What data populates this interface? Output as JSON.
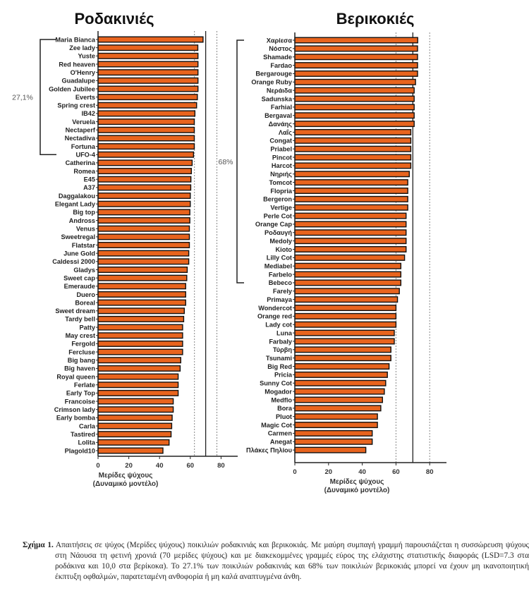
{
  "chart_data": [
    {
      "type": "bar",
      "orientation": "horizontal",
      "title": "Ροδακινιές",
      "xlabel": [
        "Μερίδες ψύχους",
        "(Δυναμικό μοντέλο)"
      ],
      "xlim": [
        0,
        90
      ],
      "xticks": [
        0,
        20,
        40,
        60,
        80
      ],
      "reference_lines": {
        "solid": 70,
        "dotted": [
          62.7,
          77.3
        ]
      },
      "bracket": {
        "label": "27,1%",
        "from": "Maria Bianca",
        "to": "UFO-4"
      },
      "categories": [
        "Maria Bianca",
        "Zee lady",
        "Yuste",
        "Red heaven",
        "O'Henry",
        "Guadalupe",
        "Golden Jubilee",
        "Everts",
        "Spring crest",
        "IB42",
        "Veruela",
        "Nectaperf",
        "Nectadiva",
        "Fortuna",
        "UFO-4",
        "Catherina",
        "Romea",
        "E45",
        "A37",
        "Daggalakou",
        "Elegant Lady",
        "Big top",
        "Andross",
        "Venus",
        "Sweetregal",
        "Flatstar",
        "June Gold",
        "Caldessi 2000",
        "Gladys",
        "Sweet cap",
        "Emeraude",
        "Duero",
        "Boreal",
        "Sweet dream",
        "Tardy bell",
        "Patty",
        "May crest",
        "Fergold",
        "Fercluse",
        "Big bang",
        "Big haven",
        "Royal queen",
        "Ferlate",
        "Early Top",
        "Francoise",
        "Crimson lady",
        "Early bomba",
        "Carla",
        "Tastired",
        "Lolita",
        "Plagold10"
      ],
      "values": [
        68.3,
        64.9,
        65.0,
        65.0,
        65.0,
        65.0,
        65.0,
        64.6,
        64.1,
        63.0,
        62.6,
        62.6,
        62.6,
        62.6,
        62.1,
        61.2,
        60.7,
        60.4,
        60.3,
        60.0,
        60.0,
        59.7,
        59.7,
        59.4,
        59.4,
        59.4,
        59.0,
        59.0,
        58.0,
        57.7,
        57.0,
        57.0,
        57.0,
        56.1,
        55.7,
        55.0,
        55.0,
        55.0,
        55.0,
        53.8,
        53.4,
        52.1,
        52.1,
        52.1,
        48.9,
        48.9,
        48.2,
        47.9,
        47.5,
        46.2,
        42.2
      ]
    },
    {
      "type": "bar",
      "orientation": "horizontal",
      "title": "Βερικοκιές",
      "xlabel": [
        "Μερίδες ψύχους",
        "(Δυναμικό μοντέλο)"
      ],
      "xlim": [
        0,
        90
      ],
      "xticks": [
        0,
        20,
        40,
        60,
        80
      ],
      "reference_lines": {
        "solid": 70,
        "dotted": [
          60,
          80
        ]
      },
      "bracket": {
        "label": "68%",
        "from": "Χαρίεσα",
        "to": "Bebeco"
      },
      "categories": [
        "Χαρίεσα",
        "Νόστος",
        "Shamade",
        "Fardao",
        "Bergarouge",
        "Orange Ruby",
        "Νεράιδα",
        "Sadunska",
        "Farhial",
        "Bergaval",
        "Δανάης",
        "Λαΐς",
        "Congat",
        "Priabel",
        "Pincot",
        "Harcot",
        "Νηριής",
        "Tomcot",
        "Flopria",
        "Bergeron",
        "Vertige",
        "Perle Cot",
        "Orange Cap",
        "Ροδαυγή",
        "Medoly",
        "Kioto",
        "Lilly Cot",
        "Mediabel",
        "Farbelo",
        "Bebeco",
        "Farely",
        "Primaya",
        "Wondercot",
        "Orange red",
        "Lady cot",
        "Luna",
        "Farbaly",
        "Τύρβη",
        "Tsunami",
        "Big Red",
        "Pricia",
        "Sunny Cot",
        "Mogador",
        "Medflo",
        "Bora",
        "Pluot",
        "Magic Cot",
        "Carmen",
        "Anegat",
        "Πλάκες Πηλίου"
      ],
      "values": [
        72.9,
        72.8,
        72.8,
        72.8,
        72.8,
        71.6,
        70.8,
        70.8,
        70.8,
        70.8,
        70.8,
        68.8,
        68.8,
        68.8,
        68.8,
        68.8,
        67.9,
        67.0,
        67.0,
        67.0,
        67.0,
        66.0,
        66.0,
        66.0,
        66.0,
        66.0,
        65.1,
        62.9,
        62.9,
        62.9,
        62.0,
        60.9,
        60.0,
        60.0,
        60.0,
        59.0,
        59.0,
        57.0,
        57.0,
        55.9,
        54.9,
        53.9,
        53.1,
        52.0,
        51.0,
        49.0,
        49.0,
        45.9,
        45.9,
        42.1
      ]
    }
  ],
  "colors": {
    "bar": "#E8641E",
    "outline": "#111111",
    "axis": "#222222",
    "dotted": "#888888"
  },
  "caption": {
    "label": "Σχήμα 1.",
    "text": "Απαιτήσεις σε ψύχος (Μερίδες ψύχους) ποικιλιών ροδακινιάς και βερικοκιάς. Με μαύρη συμπαγή γραμμή παρουσιάζεται η συσσώρευση ψύχους στη Νάουσα τη φετινή χρονιά (70 μερίδες ψύχους) και με διακεκομμένες γραμμές εύρος της ελάχιστης στατιστικής διαφοράς (LSD=7.3 στα ροδάκινα και 10,0 στα βερίκοκα). Το 27.1% των ποικιλιών ροδακινιάς και 68% των ποικιλιών βερικοκιάς μπορεί να έχουν μη ικανοποιητική έκπτυξη οφθαλμών, παρατεταμένη ανθοφορία ή μη καλά αναπτυγμένα άνθη."
  }
}
